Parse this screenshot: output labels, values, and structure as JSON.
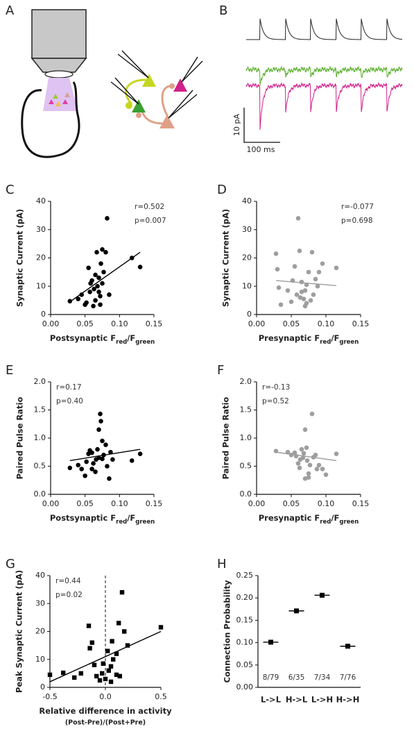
{
  "panels": {
    "A": {
      "label": "A"
    },
    "B": {
      "label": "B",
      "scale_y": "10 pA",
      "scale_x": "100 ms"
    }
  },
  "chart_data": [
    {
      "type": "scatter",
      "panel": "C",
      "marker": "circle",
      "color": "#000000",
      "ylabel": "Synaptic Current (pA)",
      "xlabel": [
        "Postsynaptic F",
        "red",
        "/F",
        "green"
      ],
      "annotations": [
        "r=0.502",
        "p=0.007"
      ],
      "annotation_position": "top-right",
      "xlim": [
        0,
        0.15
      ],
      "xticks": [
        {
          "value": 0,
          "label": "0.00"
        },
        0.05,
        {
          "value": 0.1,
          "label": "0.10"
        },
        0.15
      ],
      "ylim": [
        0,
        40
      ],
      "yticks": [
        0,
        10,
        20,
        30,
        40
      ],
      "points": {
        "x": [
          0.028,
          0.04,
          0.045,
          0.05,
          0.052,
          0.055,
          0.057,
          0.06,
          0.062,
          0.063,
          0.065,
          0.067,
          0.068,
          0.07,
          0.07,
          0.072,
          0.073,
          0.075,
          0.075,
          0.077,
          0.08,
          0.082,
          0.085,
          0.118,
          0.13,
          0.065,
          0.058,
          0.072
        ],
        "y": [
          4.7,
          5.5,
          7,
          3.5,
          4.2,
          16.5,
          8,
          12,
          3,
          9,
          14,
          22,
          10,
          13,
          8,
          3.5,
          18,
          23,
          11,
          15,
          22,
          34,
          7,
          20,
          16.8,
          5,
          11,
          6.5
        ]
      },
      "fit": {
        "x": [
          0.028,
          0.13
        ],
        "y": [
          4.5,
          22
        ]
      }
    },
    {
      "type": "scatter",
      "panel": "D",
      "marker": "circle",
      "color": "#9e9e9e",
      "ylabel": "Synaptic Current (pA)",
      "xlabel": [
        "Presynaptic F",
        "red",
        "/F",
        "green"
      ],
      "annotations": [
        "r=-0.077",
        "p=0.698"
      ],
      "annotation_position": "top-right",
      "xlim": [
        0,
        0.15
      ],
      "xticks": [
        {
          "value": 0,
          "label": "0.00"
        },
        0.05,
        {
          "value": 0.1,
          "label": "0.10"
        },
        0.15
      ],
      "ylim": [
        0,
        40
      ],
      "yticks": [
        0,
        10,
        20,
        30,
        40
      ],
      "points": {
        "x": [
          0.028,
          0.03,
          0.032,
          0.035,
          0.045,
          0.05,
          0.052,
          0.055,
          0.06,
          0.062,
          0.063,
          0.065,
          0.065,
          0.068,
          0.07,
          0.072,
          0.072,
          0.075,
          0.078,
          0.08,
          0.082,
          0.085,
          0.09,
          0.095,
          0.115,
          0.07,
          0.058,
          0.088
        ],
        "y": [
          21.5,
          16,
          9.5,
          3.5,
          8.5,
          4.5,
          12,
          17,
          34,
          22.5,
          6,
          8,
          11.5,
          5.5,
          8.5,
          4,
          10.5,
          15,
          5,
          22,
          7,
          12.5,
          15,
          18,
          16.5,
          3,
          7,
          10
        ]
      },
      "fit": {
        "x": [
          0.028,
          0.115
        ],
        "y": [
          12,
          10.2
        ]
      }
    },
    {
      "type": "scatter",
      "panel": "E",
      "marker": "circle",
      "color": "#000000",
      "ylabel": "Paired Pulse Ratio",
      "xlabel": [
        "Postsynaptic F",
        "red",
        "/F",
        "green"
      ],
      "annotations": [
        "r=0.17",
        "p=0.40"
      ],
      "annotation_position": "top-left",
      "xlim": [
        0,
        0.15
      ],
      "xticks": [
        {
          "value": 0,
          "label": "0.00"
        },
        0.05,
        {
          "value": 0.1,
          "label": "0.10"
        },
        0.15
      ],
      "ylim": [
        0,
        2
      ],
      "yticks": [
        {
          "value": 0,
          "label": "0.0"
        },
        0.5,
        {
          "value": 1,
          "label": "1.0"
        },
        1.5,
        {
          "value": 2,
          "label": "2.0"
        }
      ],
      "points": {
        "x": [
          0.028,
          0.04,
          0.045,
          0.05,
          0.052,
          0.055,
          0.057,
          0.06,
          0.062,
          0.065,
          0.066,
          0.068,
          0.07,
          0.072,
          0.073,
          0.075,
          0.075,
          0.077,
          0.08,
          0.082,
          0.085,
          0.087,
          0.09,
          0.118,
          0.13,
          0.07,
          0.06
        ],
        "y": [
          0.47,
          0.52,
          0.45,
          0.33,
          0.58,
          0.72,
          0.78,
          0.74,
          0.55,
          0.4,
          0.62,
          0.8,
          1.15,
          1.43,
          1.3,
          0.95,
          0.63,
          0.7,
          0.88,
          0.5,
          0.28,
          0.75,
          0.62,
          0.6,
          0.72,
          0.65,
          0.45
        ]
      },
      "fit": {
        "x": [
          0.028,
          0.13
        ],
        "y": [
          0.6,
          0.8
        ]
      }
    },
    {
      "type": "scatter",
      "panel": "F",
      "marker": "circle",
      "color": "#9e9e9e",
      "ylabel": "Paired Pulse Ratio",
      "xlabel": [
        "Presynaptic F",
        "red",
        "/F",
        "green"
      ],
      "annotations": [
        "r=-0.13",
        "p=0.52"
      ],
      "annotation_position": "top-left",
      "xlim": [
        0,
        0.15
      ],
      "xticks": [
        {
          "value": 0,
          "label": "0.00"
        },
        0.05,
        {
          "value": 0.1,
          "label": "0.10"
        },
        0.15
      ],
      "ylim": [
        0,
        2
      ],
      "yticks": [
        {
          "value": 0,
          "label": "0.0"
        },
        0.5,
        {
          "value": 1,
          "label": "1.0"
        },
        1.5,
        {
          "value": 2,
          "label": "2.0"
        }
      ],
      "points": {
        "x": [
          0.028,
          0.045,
          0.05,
          0.055,
          0.057,
          0.06,
          0.062,
          0.063,
          0.065,
          0.067,
          0.07,
          0.072,
          0.073,
          0.075,
          0.075,
          0.077,
          0.08,
          0.082,
          0.085,
          0.087,
          0.09,
          0.095,
          0.1,
          0.115,
          0.068,
          0.07
        ],
        "y": [
          0.77,
          0.75,
          0.7,
          0.74,
          0.68,
          0.55,
          0.47,
          0.62,
          0.8,
          0.65,
          1.15,
          0.83,
          0.6,
          0.37,
          0.3,
          0.52,
          1.43,
          0.66,
          0.7,
          0.45,
          0.52,
          0.45,
          0.35,
          0.72,
          0.73,
          0.28
        ]
      },
      "fit": {
        "x": [
          0.028,
          0.115
        ],
        "y": [
          0.75,
          0.6
        ]
      }
    },
    {
      "type": "scatter",
      "panel": "G",
      "marker": "square",
      "color": "#000000",
      "ylabel": "Peak Synaptic Current (pA)",
      "xlabel": [
        "Relative difference in activity"
      ],
      "xsublabel": "(Post-Pre)/(Post+Pre)",
      "annotations": [
        "r=0.44",
        "p=0.02"
      ],
      "annotation_position": "top-left",
      "reference_x": 0,
      "xlim": [
        -0.5,
        0.5
      ],
      "xticks": [
        -0.5,
        {
          "value": 0,
          "label": "0.0"
        },
        0.5
      ],
      "ylim": [
        0,
        40
      ],
      "yticks": [
        0,
        10,
        20,
        30,
        40
      ],
      "points": {
        "x": [
          -0.5,
          -0.38,
          -0.28,
          -0.22,
          -0.15,
          -0.14,
          -0.12,
          -0.1,
          -0.08,
          -0.05,
          -0.03,
          -0.02,
          0,
          0.02,
          0.03,
          0.05,
          0.06,
          0.07,
          0.1,
          0.12,
          0.13,
          0.15,
          0.17,
          0.2,
          0.5,
          0.05,
          0.1
        ],
        "y": [
          4.5,
          5.2,
          3.5,
          5,
          22,
          14,
          16,
          8,
          4,
          2.5,
          5,
          8.5,
          3,
          13,
          6,
          7.5,
          16.5,
          10,
          12,
          23,
          4,
          34,
          20,
          15,
          21.5,
          2,
          4.5
        ]
      },
      "fit": {
        "x": [
          -0.5,
          0.5
        ],
        "y": [
          2,
          20
        ]
      }
    },
    {
      "type": "dot",
      "panel": "H",
      "marker": "square",
      "color": "#000000",
      "ylabel": "Connection Probability",
      "categories": [
        "L->L",
        "H->L",
        "L->H",
        "H->H"
      ],
      "values": [
        0.101,
        0.171,
        0.206,
        0.092
      ],
      "value_labels": [
        "8/79",
        "6/35",
        "7/34",
        "7/76"
      ],
      "ylim": [
        0,
        0.25
      ],
      "yticks": [
        {
          "value": 0,
          "label": "0.00"
        },
        0.05,
        {
          "value": 0.1,
          "label": "0.10"
        },
        0.15,
        {
          "value": 0.2,
          "label": "0.20"
        },
        0.25
      ]
    }
  ]
}
